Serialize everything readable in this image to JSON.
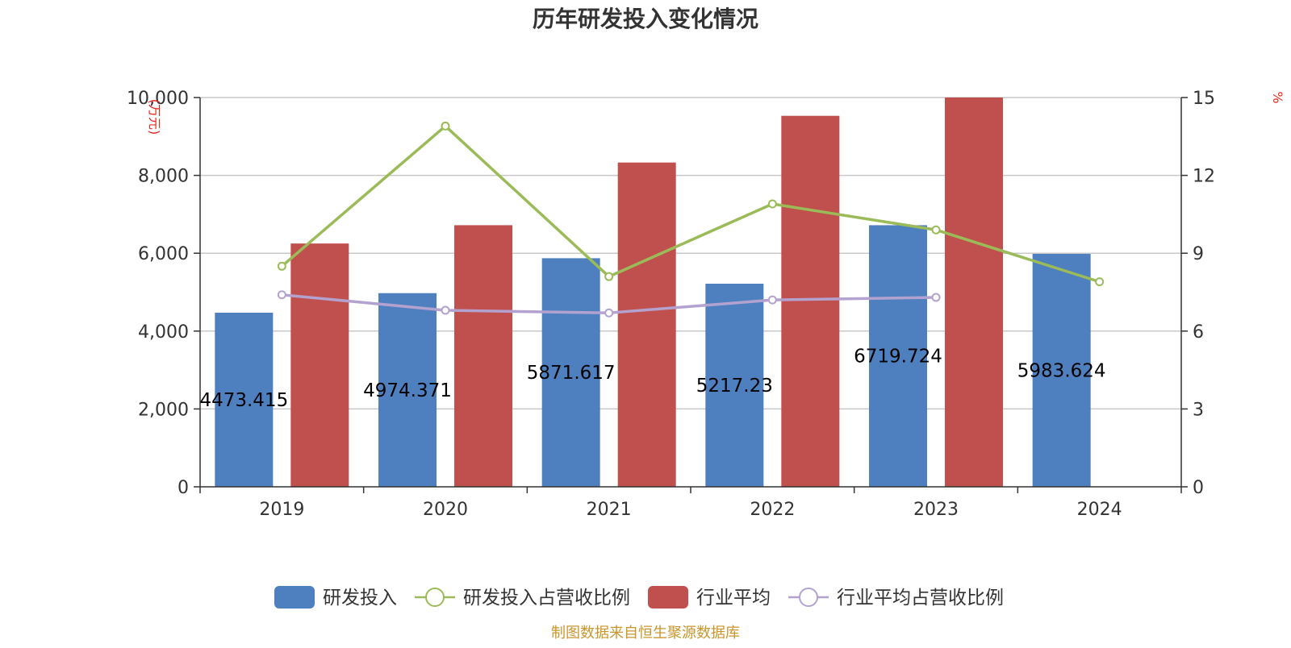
{
  "colors": {
    "rd_bar": "#4e7fbf",
    "industry_bar": "#c0504d",
    "rd_ratio_line": "#9bbb59",
    "industry_ratio_line": "#b3a2cf",
    "unit_text": "#e8261d",
    "footer_text": "#c8962d",
    "grid": "#c8c8c8",
    "axis": "#333333"
  },
  "chart_data": {
    "type": "bar",
    "title": "历年研发投入变化情况",
    "categories": [
      "2019",
      "2020",
      "2021",
      "2022",
      "2023",
      "2024"
    ],
    "y_left": {
      "unit": "(万元)",
      "ylim": [
        0,
        10000
      ],
      "ticks": [
        0,
        2000,
        4000,
        6000,
        8000,
        10000
      ],
      "tick_labels": [
        "0",
        "2,000",
        "4,000",
        "6,000",
        "8,000",
        "10,000"
      ]
    },
    "y_right": {
      "unit": "%",
      "ylim": [
        0,
        15
      ],
      "ticks": [
        0,
        3,
        6,
        9,
        12,
        15
      ],
      "tick_labels": [
        "0",
        "3",
        "6",
        "9",
        "12",
        "15"
      ]
    },
    "grid": true,
    "legend_position": "bottom",
    "series": [
      {
        "name": "研发投入",
        "kind": "bar",
        "axis": "left",
        "values": [
          4473.415,
          4974.371,
          5871.617,
          5217.23,
          6719.724,
          5983.624
        ],
        "data_labels": [
          "4473.415",
          "4974.371",
          "5871.617",
          "5217.23",
          "6719.724",
          "5983.624"
        ]
      },
      {
        "name": "研发投入占营收比例",
        "kind": "line",
        "axis": "right",
        "values": [
          8.5,
          13.9,
          8.1,
          10.9,
          9.9,
          7.9
        ]
      },
      {
        "name": "行业平均",
        "kind": "bar",
        "axis": "left",
        "values": [
          6250,
          6720,
          8330,
          9530,
          10000,
          null
        ]
      },
      {
        "name": "行业平均占营收比例",
        "kind": "line",
        "axis": "right",
        "values": [
          7.4,
          6.8,
          6.7,
          7.2,
          7.3,
          null
        ]
      }
    ]
  },
  "footer": {
    "source": "制图数据来自恒生聚源数据库"
  }
}
